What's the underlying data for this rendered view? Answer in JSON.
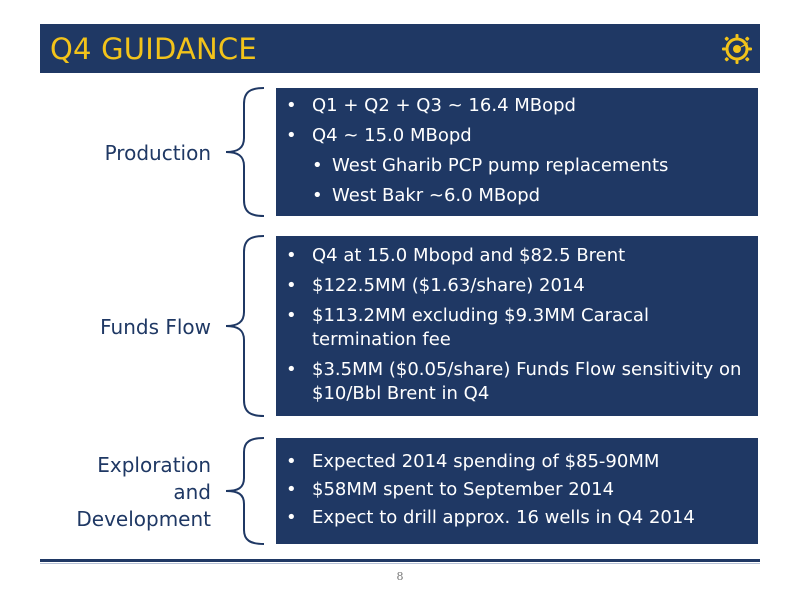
{
  "header": {
    "title": "Q4 GUIDANCE",
    "logo_icon": "gear-sun-logo",
    "background_color": "#1f3864",
    "title_color": "#f2c31a"
  },
  "sections": [
    {
      "label_lines": [
        "Production"
      ],
      "bullets": [
        {
          "level": 1,
          "text": "Q1 + Q2 + Q3 ~ 16.4 MBopd"
        },
        {
          "level": 1,
          "text": "Q4 ~ 15.0 MBopd"
        },
        {
          "level": 2,
          "text": "West Gharib PCP pump replacements"
        },
        {
          "level": 2,
          "text": "West Bakr ~6.0 MBopd"
        }
      ]
    },
    {
      "label_lines": [
        "Funds Flow"
      ],
      "bullets": [
        {
          "level": 1,
          "text": "Q4 at 15.0 Mbopd and $82.5 Brent"
        },
        {
          "level": 1,
          "text": "$122.5MM ($1.63/share) 2014"
        },
        {
          "level": 1,
          "text": "$113.2MM excluding $9.3MM Caracal termination fee"
        },
        {
          "level": 1,
          "text": "$3.5MM ($0.05/share) Funds Flow sensitivity on $10/Bbl Brent in Q4"
        }
      ]
    },
    {
      "label_lines": [
        "Exploration",
        "and",
        "Development"
      ],
      "bullets": [
        {
          "level": 1,
          "text": "Expected 2014 spending of $85-90MM"
        },
        {
          "level": 1,
          "text": "$58MM spent to September 2014"
        },
        {
          "level": 1,
          "text": "Expect to drill approx. 16 wells in Q4 2014"
        }
      ]
    }
  ],
  "footer": {
    "page_number": "8"
  }
}
